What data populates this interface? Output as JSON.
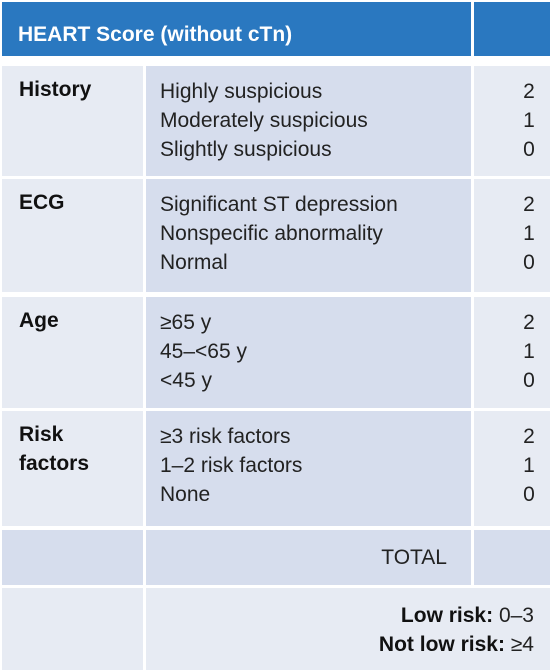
{
  "title": "HEART Score (without cTn)",
  "categories": [
    {
      "name": "History",
      "items": [
        "Highly suspicious",
        "Moderately suspicious",
        "Slightly suspicious"
      ],
      "scores": [
        "2",
        "1",
        "0"
      ]
    },
    {
      "name": "ECG",
      "items": [
        "Significant ST depression",
        "Nonspecific abnormality",
        "Normal"
      ],
      "scores": [
        "2",
        "1",
        "0"
      ]
    },
    {
      "name": "Age",
      "items": [
        "≥65 y",
        "45–<65 y",
        "<45 y"
      ],
      "scores": [
        "2",
        "1",
        "0"
      ]
    },
    {
      "name_lines": [
        "Risk",
        "factors"
      ],
      "items": [
        "≥3 risk factors",
        "1–2 risk factors",
        "None"
      ],
      "scores": [
        "2",
        "1",
        "0"
      ]
    }
  ],
  "total_label": "TOTAL",
  "risk": {
    "low_label": "Low risk:",
    "low_value": "0–3",
    "not_low_label": "Not low risk:",
    "not_low_value": "≥4"
  },
  "colors": {
    "header_bg": "#2a78c0",
    "cell_light": "#e7ebf3",
    "cell_mid": "#d6dded"
  }
}
